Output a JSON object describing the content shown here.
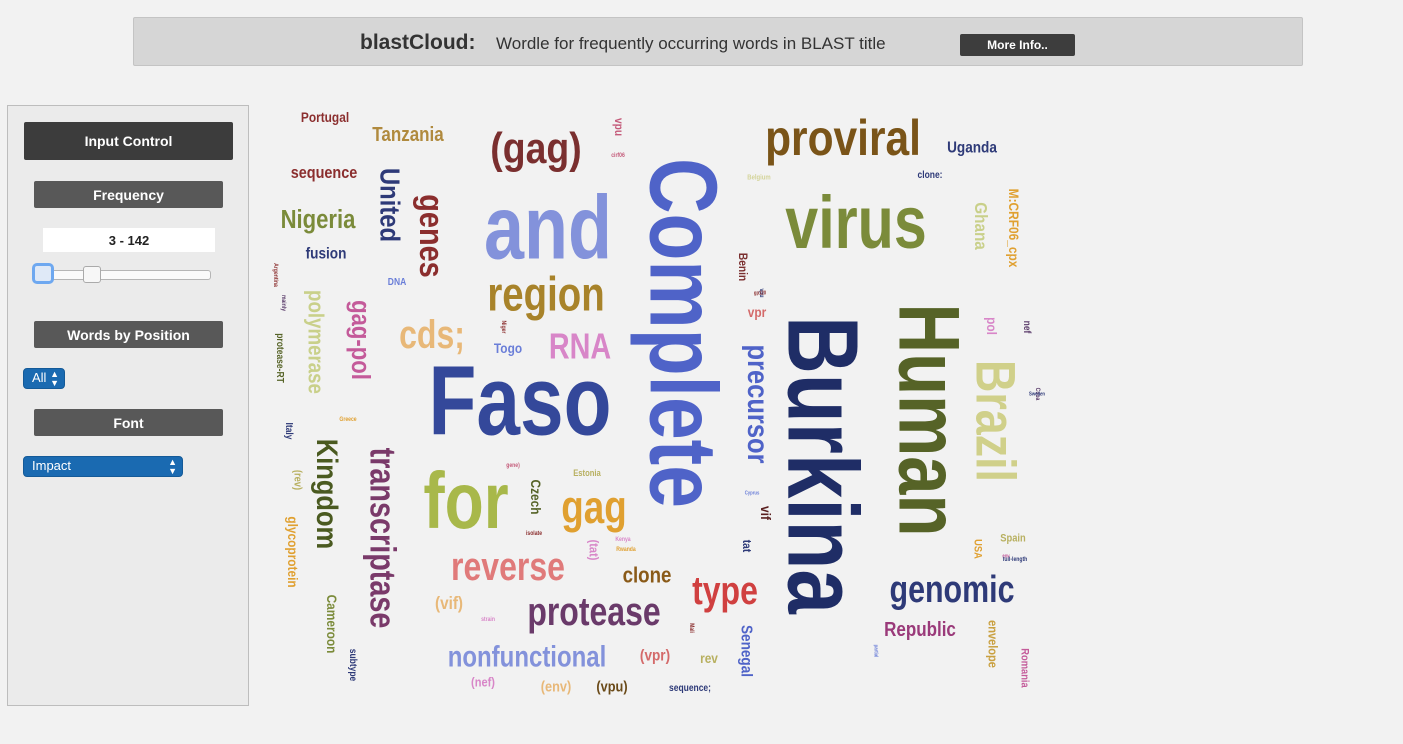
{
  "header": {
    "title": "blastCloud:",
    "subtitle": "Wordle for frequently occurring words in BLAST title",
    "more_info_label": "More Info.."
  },
  "sidebar": {
    "input_control_label": "Input Control",
    "frequency_label": "Frequency",
    "frequency_range": "3 - 142",
    "frequency_min": 3,
    "frequency_max": 142,
    "slider_min_fraction": 0.0,
    "slider_max_fraction": 0.3,
    "words_by_position_label": "Words by Position",
    "position_selected": "All",
    "font_label": "Font",
    "font_selected": "Impact"
  },
  "colors": {
    "accent_select": "#1a6ab1",
    "header_bg": "#d6d6d6",
    "button_dark": "#3c3c3c"
  },
  "word_cloud": {
    "words": [
      {
        "text": "Portugal",
        "color": "#8b2e2e"
      },
      {
        "text": "Tanzania",
        "color": "#b08a3e"
      },
      {
        "text": "(gag)",
        "color": "#7a2f2f"
      },
      {
        "text": "vpu",
        "color": "#c45b7a"
      },
      {
        "text": "cirf06",
        "color": "#c45b7a"
      },
      {
        "text": "Complete",
        "color": "#4f63c8"
      },
      {
        "text": "proviral",
        "color": "#7a5418"
      },
      {
        "text": "Uganda",
        "color": "#2e3a78"
      },
      {
        "text": "sequence",
        "color": "#8b2e2e"
      },
      {
        "text": "United",
        "color": "#2e3a78"
      },
      {
        "text": "genes",
        "color": "#8b2e2e"
      },
      {
        "text": "and",
        "color": "#8392db"
      },
      {
        "text": "virus",
        "color": "#7b8b3a"
      },
      {
        "text": "Belgium",
        "color": "#d4d49a"
      },
      {
        "text": "clone:",
        "color": "#2e3a78"
      },
      {
        "text": "M:CRF06_cpx",
        "color": "#e0a030"
      },
      {
        "text": "Nigeria",
        "color": "#7b8b3a"
      },
      {
        "text": "Ghana",
        "color": "#c9d08a"
      },
      {
        "text": "fusion",
        "color": "#2e3a78"
      },
      {
        "text": "Argentina",
        "color": "#8b2e2e"
      },
      {
        "text": "DNA",
        "color": "#6a7ed8"
      },
      {
        "text": "region",
        "color": "#a8832a"
      },
      {
        "text": "Benin",
        "color": "#7a2f2f"
      },
      {
        "text": "Burkina",
        "color": "#1f2d66"
      },
      {
        "text": "Human",
        "color": "#566327"
      },
      {
        "text": "mainly",
        "color": "#5a3b6a"
      },
      {
        "text": "polymerase",
        "color": "#c9d08a"
      },
      {
        "text": "gag-pol",
        "color": "#c45b9a"
      },
      {
        "text": "cds;",
        "color": "#e8b878"
      },
      {
        "text": "RNA",
        "color": "#d886c8"
      },
      {
        "text": "Togo",
        "color": "#6a7ed8"
      },
      {
        "text": "vpr",
        "color": "#d46a6a"
      },
      {
        "text": "pol",
        "color": "#d886c8"
      },
      {
        "text": "nef",
        "color": "#5a3b6a"
      },
      {
        "text": "protease-RT",
        "color": "#566327"
      },
      {
        "text": "precursor",
        "color": "#4f63c8"
      },
      {
        "text": "Brazil",
        "color": "#d0d08a"
      },
      {
        "text": "Faso",
        "color": "#34489a"
      },
      {
        "text": "Cuba",
        "color": "#5a3b6a"
      },
      {
        "text": "Italy",
        "color": "#2e3a78"
      },
      {
        "text": "Greece",
        "color": "#e0a030"
      },
      {
        "text": "Kingdom",
        "color": "#4a5a20"
      },
      {
        "text": "transcriptase",
        "color": "#7a3a6a"
      },
      {
        "text": "(rev)",
        "color": "#b8b060"
      },
      {
        "text": "for",
        "color": "#a8b84a"
      },
      {
        "text": "gene)",
        "color": "#c45b7a"
      },
      {
        "text": "Estonia",
        "color": "#b8b060"
      },
      {
        "text": "Czech",
        "color": "#566327"
      },
      {
        "text": "gag",
        "color": "#e0a030"
      },
      {
        "text": "vif",
        "color": "#5a1f1f"
      },
      {
        "text": "Spain",
        "color": "#b8b060"
      },
      {
        "text": "glycoprotein",
        "color": "#e0a030"
      },
      {
        "text": "Cameroon",
        "color": "#7b8b3a"
      },
      {
        "text": "reverse",
        "color": "#e07a7a"
      },
      {
        "text": "clone",
        "color": "#8a5a18"
      },
      {
        "text": "tat",
        "color": "#2e3a78"
      },
      {
        "text": "type",
        "color": "#d04040"
      },
      {
        "text": "genomic",
        "color": "#2e3a78"
      },
      {
        "text": "USA",
        "color": "#e0a030"
      },
      {
        "text": "full-length",
        "color": "#2e3a78"
      },
      {
        "text": "(vif)",
        "color": "#e8b878"
      },
      {
        "text": "protease",
        "color": "#6a3a6a"
      },
      {
        "text": "Republic",
        "color": "#9a3a7a"
      },
      {
        "text": "envelope",
        "color": "#c9a040"
      },
      {
        "text": "subtype",
        "color": "#2e3a78"
      },
      {
        "text": "nonfunctional",
        "color": "#8392db"
      },
      {
        "text": "(vpr)",
        "color": "#d46a6a"
      },
      {
        "text": "rev",
        "color": "#b8b060"
      },
      {
        "text": "Senegal",
        "color": "#4f63c8"
      },
      {
        "text": "Romania",
        "color": "#c45b9a"
      },
      {
        "text": "(nef)",
        "color": "#d886c8"
      },
      {
        "text": "(env)",
        "color": "#e8b878"
      },
      {
        "text": "(vpu)",
        "color": "#6a4a18"
      },
      {
        "text": "sequence;",
        "color": "#2e3a78"
      },
      {
        "text": "(tat)",
        "color": "#d886c8"
      },
      {
        "text": "strain",
        "color": "#d886c8"
      },
      {
        "text": "isolate",
        "color": "#8b2e2e"
      },
      {
        "text": "Rwanda",
        "color": "#e0a030"
      },
      {
        "text": "Kenya",
        "color": "#d886c8"
      },
      {
        "text": "Cyprus",
        "color": "#6a7ed8"
      },
      {
        "text": "Mali",
        "color": "#8b2e2e"
      },
      {
        "text": "vpu",
        "color": "#2e3a78"
      },
      {
        "text": "Niger",
        "color": "#8b2e2e"
      },
      {
        "text": "env",
        "color": "#c45b9a"
      },
      {
        "text": "partial",
        "color": "#6a7ed8"
      },
      {
        "text": "Sweden",
        "color": "#2e3a78"
      },
      {
        "text": "gp120",
        "color": "#8b2e2e"
      }
    ]
  }
}
